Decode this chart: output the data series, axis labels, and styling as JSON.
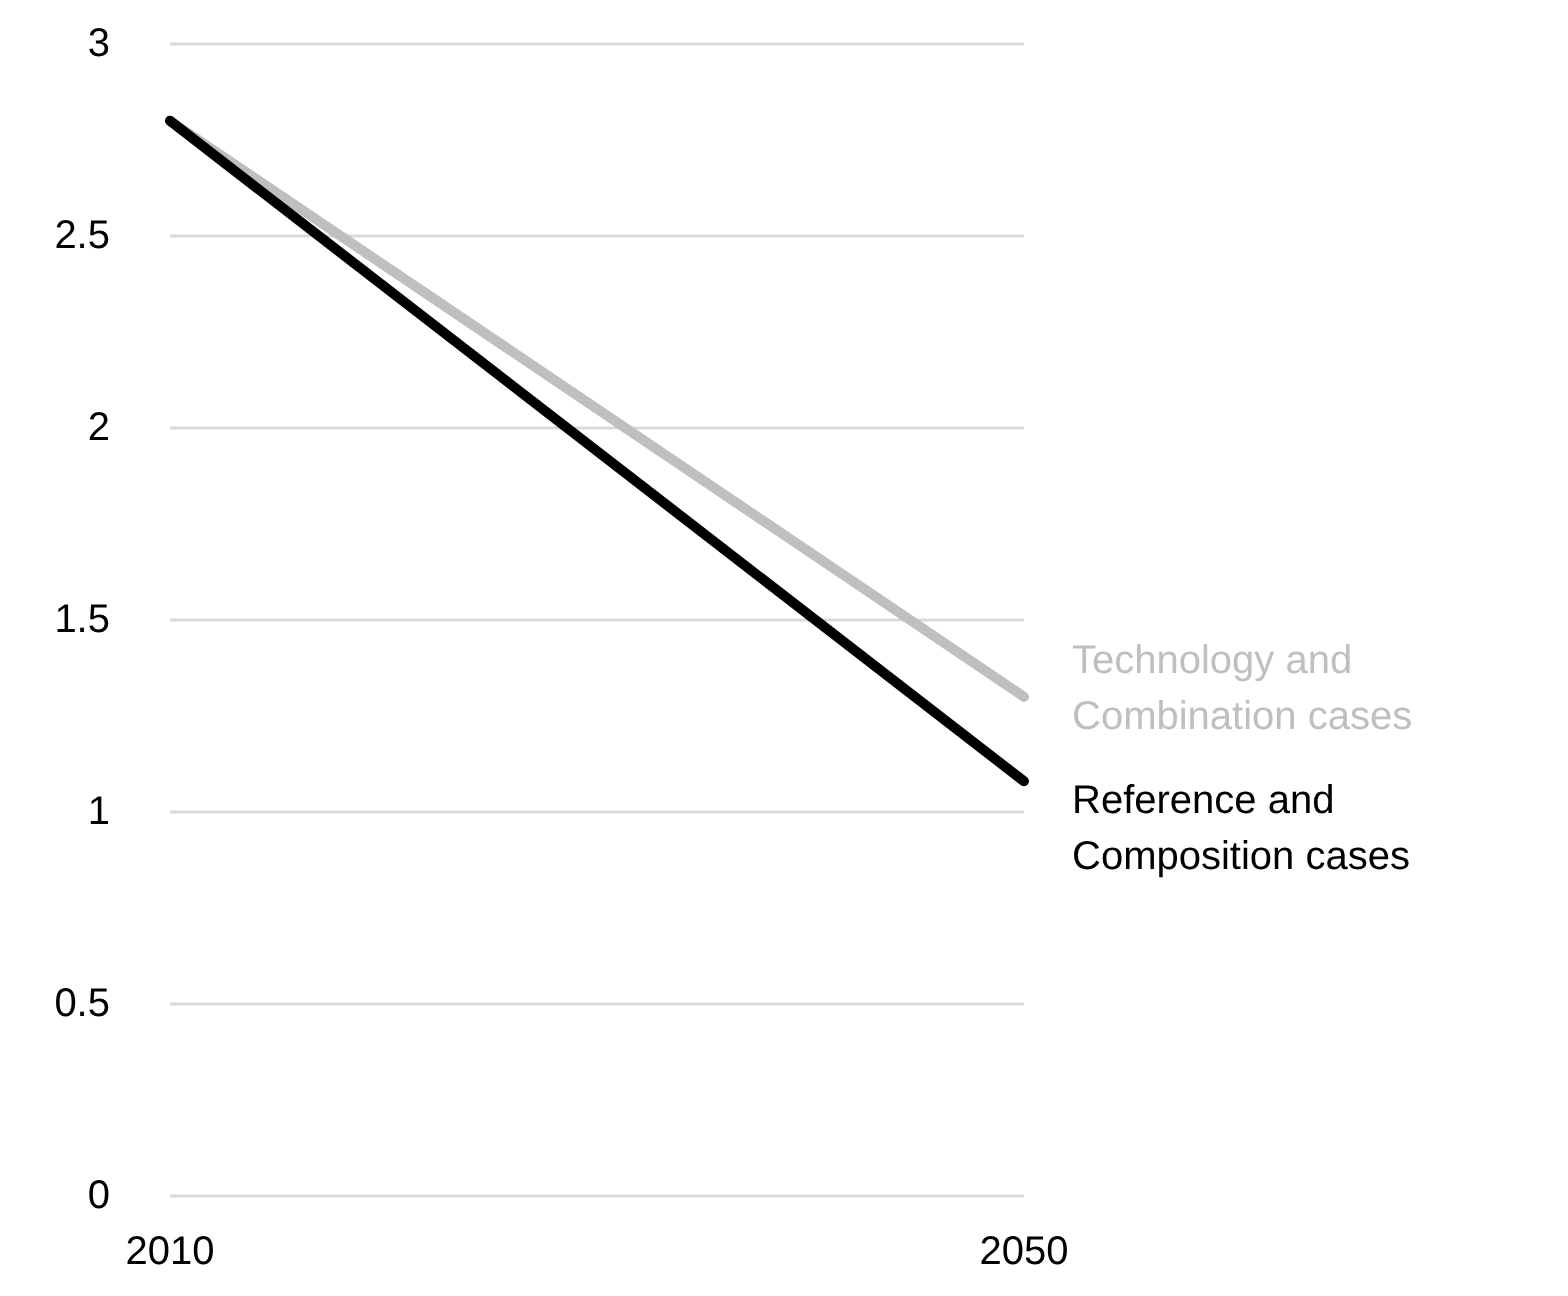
{
  "chart_data": {
    "type": "line",
    "x": [
      2010,
      2050
    ],
    "xlim": [
      2010,
      2050
    ],
    "xticks": [
      2010,
      2050
    ],
    "ylim": [
      0,
      3
    ],
    "yticks": [
      0,
      0.5,
      1,
      1.5,
      2,
      2.5,
      3
    ],
    "grid": "y",
    "legend": false,
    "line_style": "solid",
    "series": [
      {
        "name": "Technology and\nCombination cases",
        "color": "#bfbfbf",
        "values": [
          2.8,
          1.3
        ]
      },
      {
        "name": "Reference and\nComposition cases",
        "color": "#000000",
        "values": [
          2.8,
          1.08
        ]
      }
    ]
  }
}
